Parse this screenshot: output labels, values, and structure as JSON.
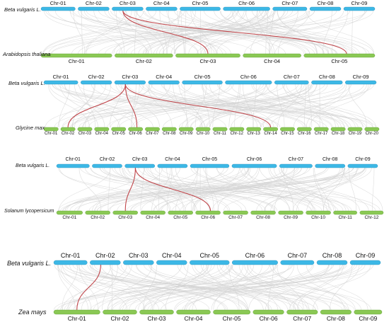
{
  "colors": {
    "reference_chr": "#3db8e6",
    "target_chr": "#8ac854",
    "background_link": "#d3d3d3",
    "highlight_link": "#c0454a",
    "text": "#111111"
  },
  "panels": [
    {
      "reference_species": "Beta vulgaris L.",
      "target_species": "Arabidopsis thaliana",
      "reference_chromosomes": [
        "Chr-01",
        "Chr-02",
        "Chr-03",
        "Chr-04",
        "Chr-05",
        "Chr-06",
        "Chr-07",
        "Chr-08",
        "Chr-09"
      ],
      "target_chromosomes": [
        "Chr-01",
        "Chr-02",
        "Chr-03",
        "Chr-04",
        "Chr-05"
      ],
      "highlight_links": [
        {
          "from": "Chr-03",
          "to": "Chr-03"
        },
        {
          "from": "Chr-03",
          "to": "Chr-05"
        }
      ]
    },
    {
      "reference_species": "Beta vulgaris L.",
      "target_species": "Glycine max",
      "reference_chromosomes": [
        "Chr-01",
        "Chr-02",
        "Chr-03",
        "Chr-04",
        "Chr-05",
        "Chr-06",
        "Chr-07",
        "Chr-08",
        "Chr-09"
      ],
      "target_chromosomes": [
        "Chr-01",
        "Chr-02",
        "Chr-03",
        "Chr-04",
        "Chr-05",
        "Chr-06",
        "Chr-07",
        "Chr-08",
        "Chr-09",
        "Chr-10",
        "Chr-11",
        "Chr-12",
        "Chr-13",
        "Chr-14",
        "Chr-15",
        "Chr-16",
        "Chr-17",
        "Chr-18",
        "Chr-19",
        "Chr-20"
      ],
      "highlight_links": [
        {
          "from": "Chr-03",
          "to": "Chr-02"
        },
        {
          "from": "Chr-03",
          "to": "Chr-06"
        },
        {
          "from": "Chr-03",
          "to": "Chr-14"
        }
      ]
    },
    {
      "reference_species": "Beta vulgaris L.",
      "target_species": "Solanum lycopersicum",
      "reference_chromosomes": [
        "Chr-01",
        "Chr-02",
        "Chr-03",
        "Chr-04",
        "Chr-05",
        "Chr-06",
        "Chr-07",
        "Chr-08",
        "Chr-09"
      ],
      "target_chromosomes": [
        "Chr-01",
        "Chr-02",
        "Chr-03",
        "Chr-04",
        "Chr-05",
        "Chr-06",
        "Chr-07",
        "Chr-08",
        "Chr-09",
        "Chr-10",
        "Chr-11",
        "Chr-12"
      ],
      "highlight_links": [
        {
          "from": "Chr-03",
          "to": "Chr-03"
        },
        {
          "from": "Chr-03",
          "to": "Chr-06"
        }
      ]
    },
    {
      "reference_species": "Beta vulgaris L.",
      "target_species": "Zea mays",
      "reference_chromosomes": [
        "Chr-01",
        "Chr-02",
        "Chr-03",
        "Chr-04",
        "Chr-05",
        "Chr-06",
        "Chr-07",
        "Chr-08",
        "Chr-09"
      ],
      "target_chromosomes": [
        "Chr-01",
        "Chr-02",
        "Chr-03",
        "Chr-04",
        "Chr-05",
        "Chr-06",
        "Chr-07",
        "Chr-08",
        "Chr-09"
      ],
      "highlight_links": [
        {
          "from": "Chr-02",
          "to": "Chr-01"
        }
      ]
    }
  ]
}
